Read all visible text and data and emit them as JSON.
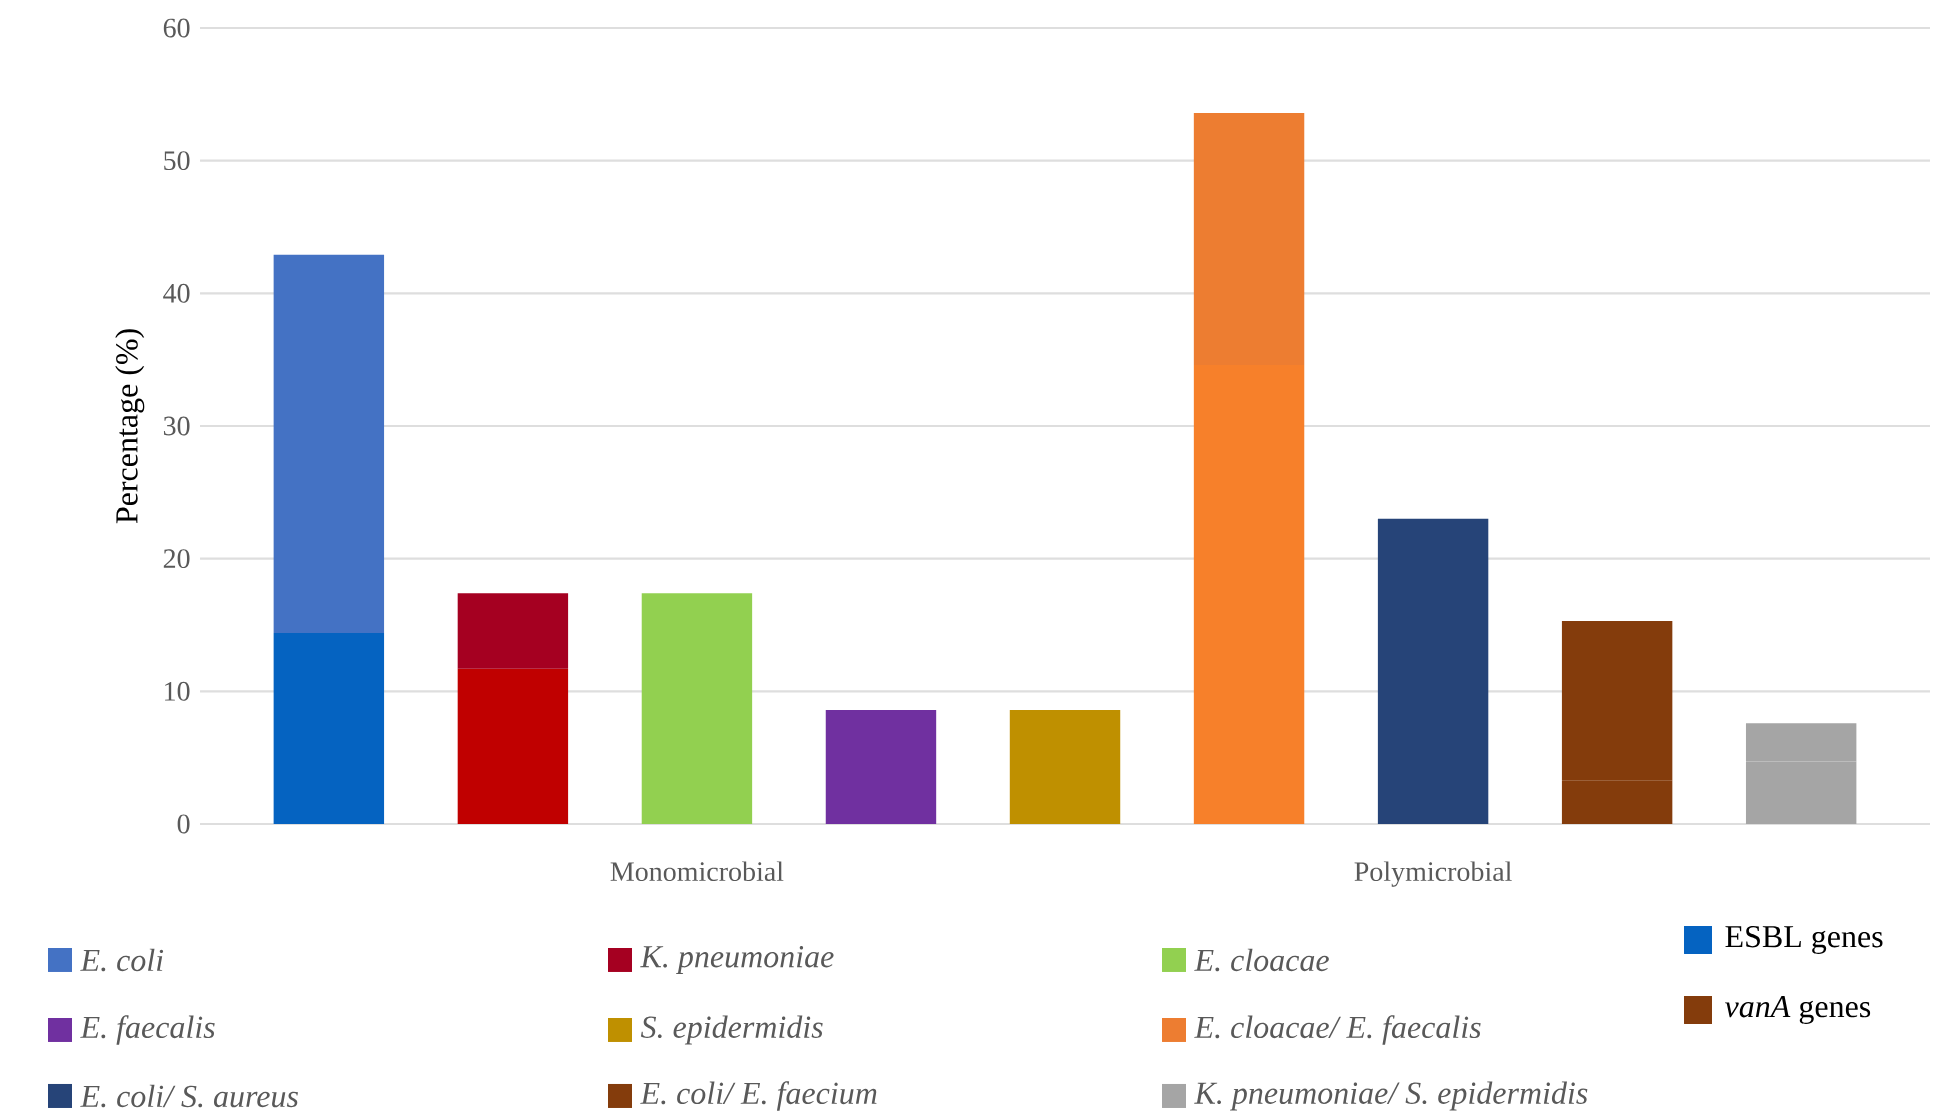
{
  "chart_data": {
    "type": "bar",
    "ylabel": "Percentage (%)",
    "categories": [
      null,
      null,
      "Monomicrobial",
      null,
      null,
      null,
      "Polymicrobial",
      null,
      null
    ],
    "stacked": true,
    "grid": "y",
    "legend": "bottom",
    "ylim": [
      0,
      60
    ],
    "yticks": [
      0,
      10,
      20,
      30,
      40,
      50,
      60
    ],
    "series": [
      {
        "name": "ESBL genes",
        "colors": [
          "#0563c1",
          "#c00000",
          null,
          null,
          null,
          "#f7802a",
          null,
          null,
          "#a5a5a5"
        ],
        "values": [
          14.4,
          11.7,
          null,
          null,
          null,
          34.6,
          null,
          null,
          4.7
        ]
      },
      {
        "name": "*vanA* genes",
        "colors": [
          null,
          null,
          null,
          null,
          null,
          null,
          null,
          "#843c0c",
          null
        ],
        "values": [
          null,
          null,
          null,
          null,
          null,
          null,
          null,
          3.3,
          null
        ]
      },
      {
        "name": "E. coli",
        "color": "#4472c4",
        "values": [
          28.5,
          null,
          null,
          null,
          null,
          null,
          null,
          null,
          null
        ]
      },
      {
        "name": "K. pneumoniae",
        "color": "#a50021",
        "values": [
          null,
          5.7,
          null,
          null,
          null,
          null,
          null,
          null,
          null
        ]
      },
      {
        "name": "E. cloacae",
        "color": "#92d050",
        "values": [
          null,
          null,
          17.4,
          null,
          null,
          null,
          null,
          null,
          null
        ]
      },
      {
        "name": "E. faecalis",
        "color": "#7030a0",
        "values": [
          null,
          null,
          null,
          8.6,
          null,
          null,
          null,
          null,
          null
        ]
      },
      {
        "name": "S. epidermidis",
        "color": "#bf9000",
        "values": [
          null,
          null,
          null,
          null,
          8.6,
          null,
          null,
          null,
          null
        ]
      },
      {
        "name": "E. cloacae/ E. faecalis",
        "color": "#ed7d31",
        "values": [
          null,
          null,
          null,
          null,
          null,
          19.0,
          null,
          null,
          null
        ]
      },
      {
        "name": "E. coli/ S. aureus",
        "color": "#264478",
        "values": [
          null,
          null,
          null,
          null,
          null,
          null,
          23.0,
          null,
          null
        ]
      },
      {
        "name": "E. coli/ E. faecium",
        "color": "#843c0c",
        "values": [
          null,
          null,
          null,
          null,
          null,
          null,
          null,
          12.0,
          null
        ]
      },
      {
        "name": "K. pneumoniae/ S. epidermidis",
        "color": "#a5a5a5",
        "values": [
          null,
          null,
          null,
          null,
          null,
          null,
          null,
          null,
          2.9
        ]
      }
    ]
  }
}
